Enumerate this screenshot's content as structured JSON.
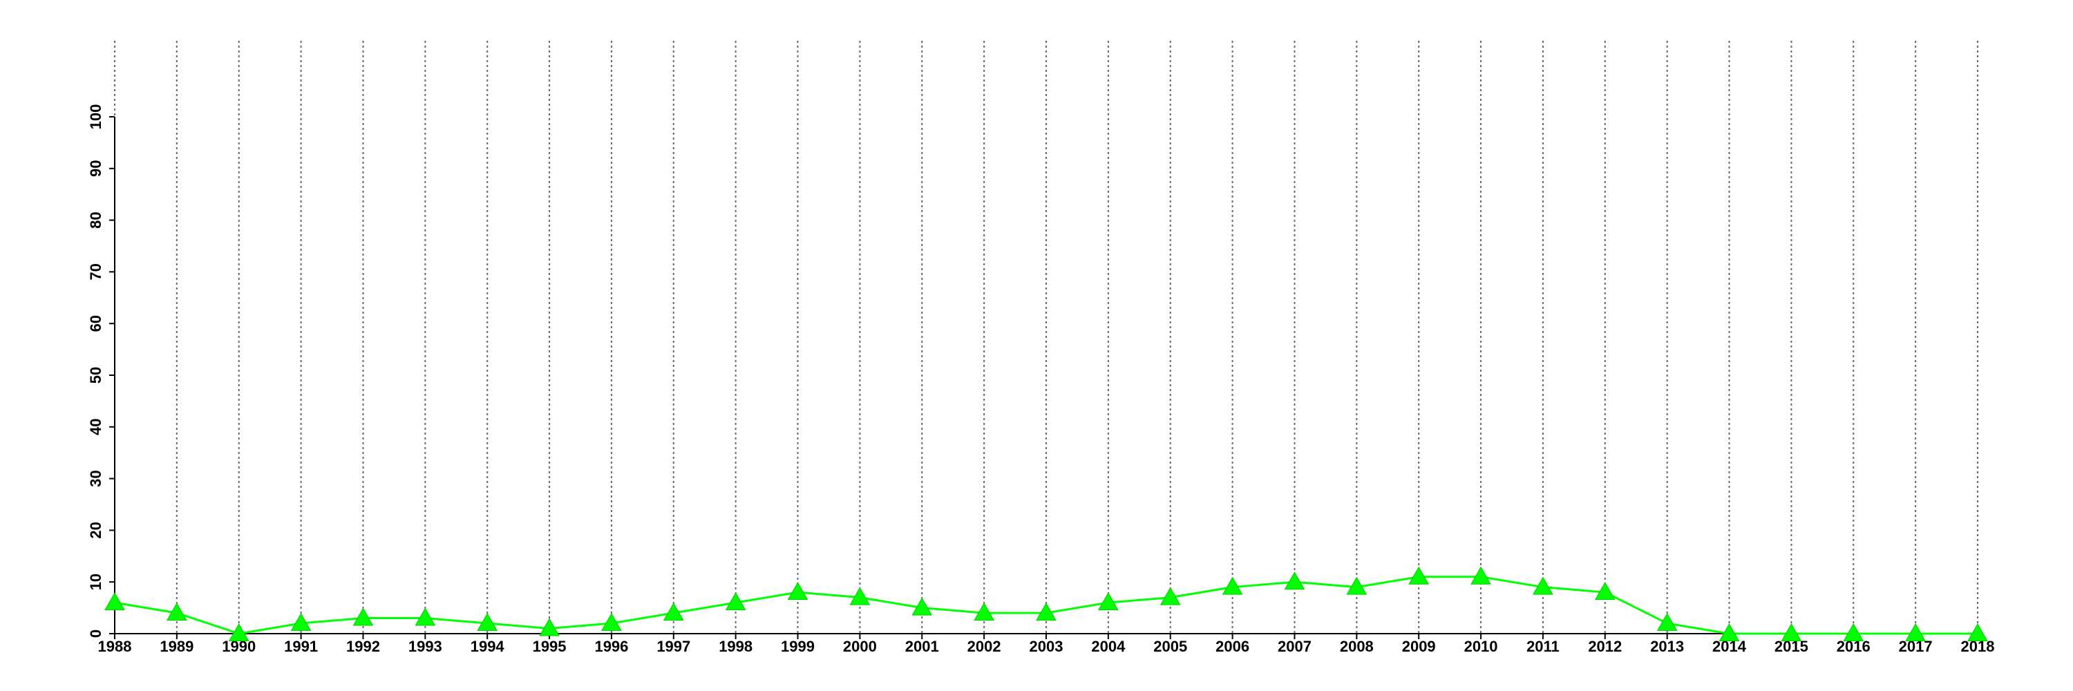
{
  "chart_data": {
    "type": "line",
    "x": [
      1988,
      1989,
      1990,
      1991,
      1992,
      1993,
      1994,
      1995,
      1996,
      1997,
      1998,
      1999,
      2000,
      2001,
      2002,
      2003,
      2004,
      2005,
      2006,
      2007,
      2008,
      2009,
      2010,
      2011,
      2012,
      2013,
      2014,
      2015,
      2016,
      2017,
      2018
    ],
    "values": [
      6,
      4,
      0,
      2,
      3,
      3,
      2,
      1,
      2,
      4,
      6,
      8,
      7,
      5,
      4,
      4,
      6,
      7,
      9,
      10,
      9,
      11,
      11,
      9,
      8,
      2,
      0,
      0,
      0,
      0,
      0
    ],
    "color": "#00ff00",
    "xlim": [
      1988,
      2018
    ],
    "xticks": [
      1988,
      1989,
      1990,
      1991,
      1992,
      1993,
      1994,
      1995,
      1996,
      1997,
      1998,
      1999,
      2000,
      2001,
      2002,
      2003,
      2004,
      2005,
      2006,
      2007,
      2008,
      2009,
      2010,
      2011,
      2012,
      2013,
      2014,
      2015,
      2016,
      2017,
      2018
    ],
    "ylim": [
      0,
      100
    ],
    "yticks": [
      0,
      10,
      20,
      30,
      40,
      50,
      60,
      70,
      80,
      90,
      100
    ],
    "grid": "x"
  }
}
